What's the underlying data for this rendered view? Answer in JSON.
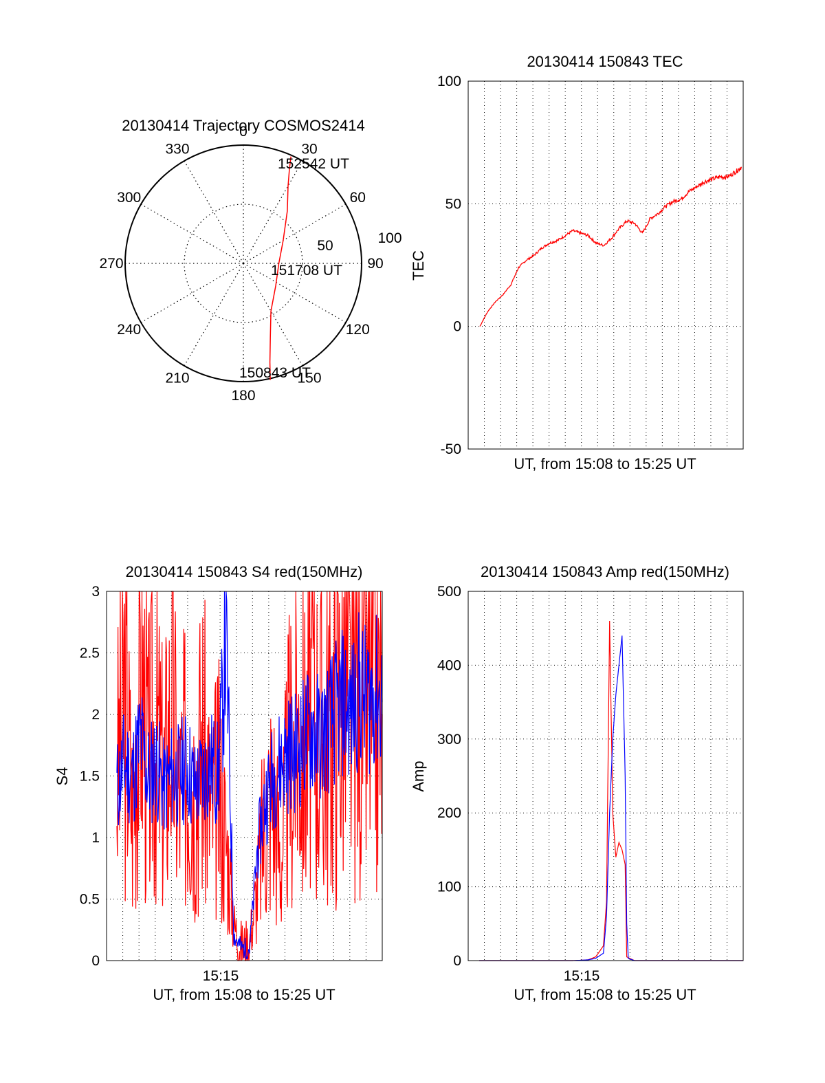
{
  "colors": {
    "primary": "#ff0000",
    "secondary": "#0000ff",
    "axis": "#000000",
    "grid": "#000000"
  },
  "chart_data": [
    {
      "id": "trajectory",
      "type": "polar",
      "title": "20130414 Trajectory COSMOS2414",
      "azimuth_labels": [
        "0",
        "30",
        "60",
        "90",
        "120",
        "150",
        "180",
        "210",
        "240",
        "270",
        "300",
        "330"
      ],
      "ring_labels": [
        "50",
        "100"
      ],
      "grid": true,
      "annotations": [
        "152542 UT",
        "151708 UT",
        "150843 UT"
      ],
      "trajectory": [
        {
          "azimuth": 167,
          "zenith": 91
        },
        {
          "azimuth": 165,
          "zenith": 78
        },
        {
          "azimuth": 160,
          "zenith": 60
        },
        {
          "azimuth": 150,
          "zenith": 42
        },
        {
          "azimuth": 125,
          "zenith": 30
        },
        {
          "azimuth": 90,
          "zenith": 27
        },
        {
          "azimuth": 60,
          "zenith": 35
        },
        {
          "azimuth": 40,
          "zenith": 52
        },
        {
          "azimuth": 30,
          "zenith": 68
        },
        {
          "azimuth": 26,
          "zenith": 80
        },
        {
          "azimuth": 24,
          "zenith": 89
        }
      ]
    },
    {
      "id": "tec",
      "type": "line",
      "title": "20130414 150843 TEC",
      "xlabel": "UT, from 15:08 to 15:25 UT",
      "ylabel": "TEC",
      "ylim": [
        -50,
        100
      ],
      "yticks": [
        "100",
        "50",
        "0",
        "-50"
      ],
      "grid": true,
      "series": [
        {
          "color": "red",
          "x": [
            0,
            0.5,
            1,
            1.5,
            2,
            2.5,
            3,
            3.5,
            4,
            4.5,
            5,
            5.5,
            6,
            6.5,
            7,
            7.5,
            8,
            8.5,
            9,
            9.5,
            10,
            10.5,
            11,
            11.5,
            12,
            12.5,
            13,
            13.5,
            14,
            14.5,
            15,
            15.5,
            16,
            16.5,
            16.9
          ],
          "y": [
            0,
            6,
            10,
            13,
            17,
            24,
            27,
            29,
            32,
            34,
            35,
            37,
            39,
            38,
            37,
            34,
            33,
            36,
            40,
            43,
            42,
            38,
            44,
            46,
            49,
            51,
            52,
            55,
            57,
            59,
            60,
            61,
            61,
            63,
            65
          ]
        }
      ]
    },
    {
      "id": "s4",
      "type": "line",
      "title": "20130414 150843 S4 red(150MHz)",
      "xlabel": "UT, from 15:08 to 15:25 UT",
      "ylabel": "S4",
      "ylim": [
        0,
        3
      ],
      "yticks": [
        "3",
        "2.5",
        "2",
        "1.5",
        "1",
        "0.5",
        "0"
      ],
      "xticks": [
        "15:15"
      ],
      "grid": true,
      "series": [
        {
          "color": "red",
          "x": [
            0,
            0.5,
            1,
            1.5,
            2,
            2.5,
            3,
            3.5,
            4,
            4.5,
            5,
            5.5,
            6,
            6.5,
            7,
            7.5,
            8,
            8.5,
            9,
            9.5,
            10,
            10.5,
            11,
            11.5,
            12,
            12.5,
            13,
            13.5,
            14,
            14.5,
            15,
            15.5,
            16,
            16.5,
            17
          ],
          "y": [
            1.5,
            2.2,
            1.2,
            2.5,
            1.6,
            1.9,
            1.4,
            2.1,
            1.3,
            1.7,
            1.5,
            1.8,
            1.2,
            1.4,
            1.0,
            0.3,
            0.1,
            0.15,
            0.6,
            1.2,
            1.4,
            0.8,
            1.6,
            1.9,
            1.7,
            2.2,
            1.8,
            1.9,
            2.0,
            2.3,
            2.0,
            2.4,
            2.1,
            2.2,
            2.0
          ]
        },
        {
          "color": "blue",
          "x": [
            0,
            0.5,
            1,
            1.5,
            2,
            2.5,
            3,
            3.5,
            4,
            4.5,
            5,
            5.5,
            6,
            6.5,
            7,
            7.5,
            8,
            8.5,
            9,
            9.5,
            10,
            10.5,
            11,
            11.5,
            12,
            12.5,
            13,
            13.5,
            14,
            14.5,
            15,
            15.5,
            16,
            16.5,
            17
          ],
          "y": [
            1.4,
            1.6,
            1.5,
            1.8,
            1.5,
            1.6,
            1.4,
            1.5,
            1.5,
            1.6,
            1.4,
            1.5,
            1.6,
            1.5,
            2.6,
            0.2,
            0.1,
            0.1,
            0.9,
            1.3,
            1.5,
            1.6,
            1.7,
            1.7,
            1.8,
            1.9,
            1.8,
            1.9,
            2.0,
            2.1,
            2.0,
            2.2,
            2.1,
            2.2,
            2.1
          ]
        }
      ]
    },
    {
      "id": "amp",
      "type": "line",
      "title": "20130414 150843 Amp red(150MHz)",
      "xlabel": "UT, from 15:08 to 15:25 UT",
      "ylabel": "Amp",
      "ylim": [
        0,
        500
      ],
      "yticks": [
        "500",
        "400",
        "300",
        "200",
        "100",
        "0"
      ],
      "xticks": [
        "15:15"
      ],
      "grid": true,
      "series": [
        {
          "color": "red",
          "x": [
            0,
            2,
            4,
            6,
            7,
            7.5,
            8,
            8.2,
            8.4,
            8.6,
            8.8,
            9.0,
            9.2,
            9.4,
            9.5,
            10,
            12,
            14,
            16,
            17
          ],
          "y": [
            0,
            0,
            0,
            0,
            1,
            5,
            20,
            80,
            460,
            200,
            140,
            160,
            150,
            130,
            5,
            0,
            0,
            0,
            0,
            0
          ]
        },
        {
          "color": "blue",
          "x": [
            0,
            2,
            4,
            6,
            7,
            7.5,
            8,
            8.2,
            8.4,
            8.6,
            8.8,
            9.0,
            9.2,
            9.4,
            9.5,
            9.6,
            10,
            12,
            14,
            16,
            17
          ],
          "y": [
            0,
            0,
            0,
            0,
            1,
            3,
            10,
            60,
            200,
            300,
            360,
            400,
            440,
            250,
            50,
            3,
            0,
            0,
            0,
            0,
            0
          ]
        }
      ]
    }
  ]
}
